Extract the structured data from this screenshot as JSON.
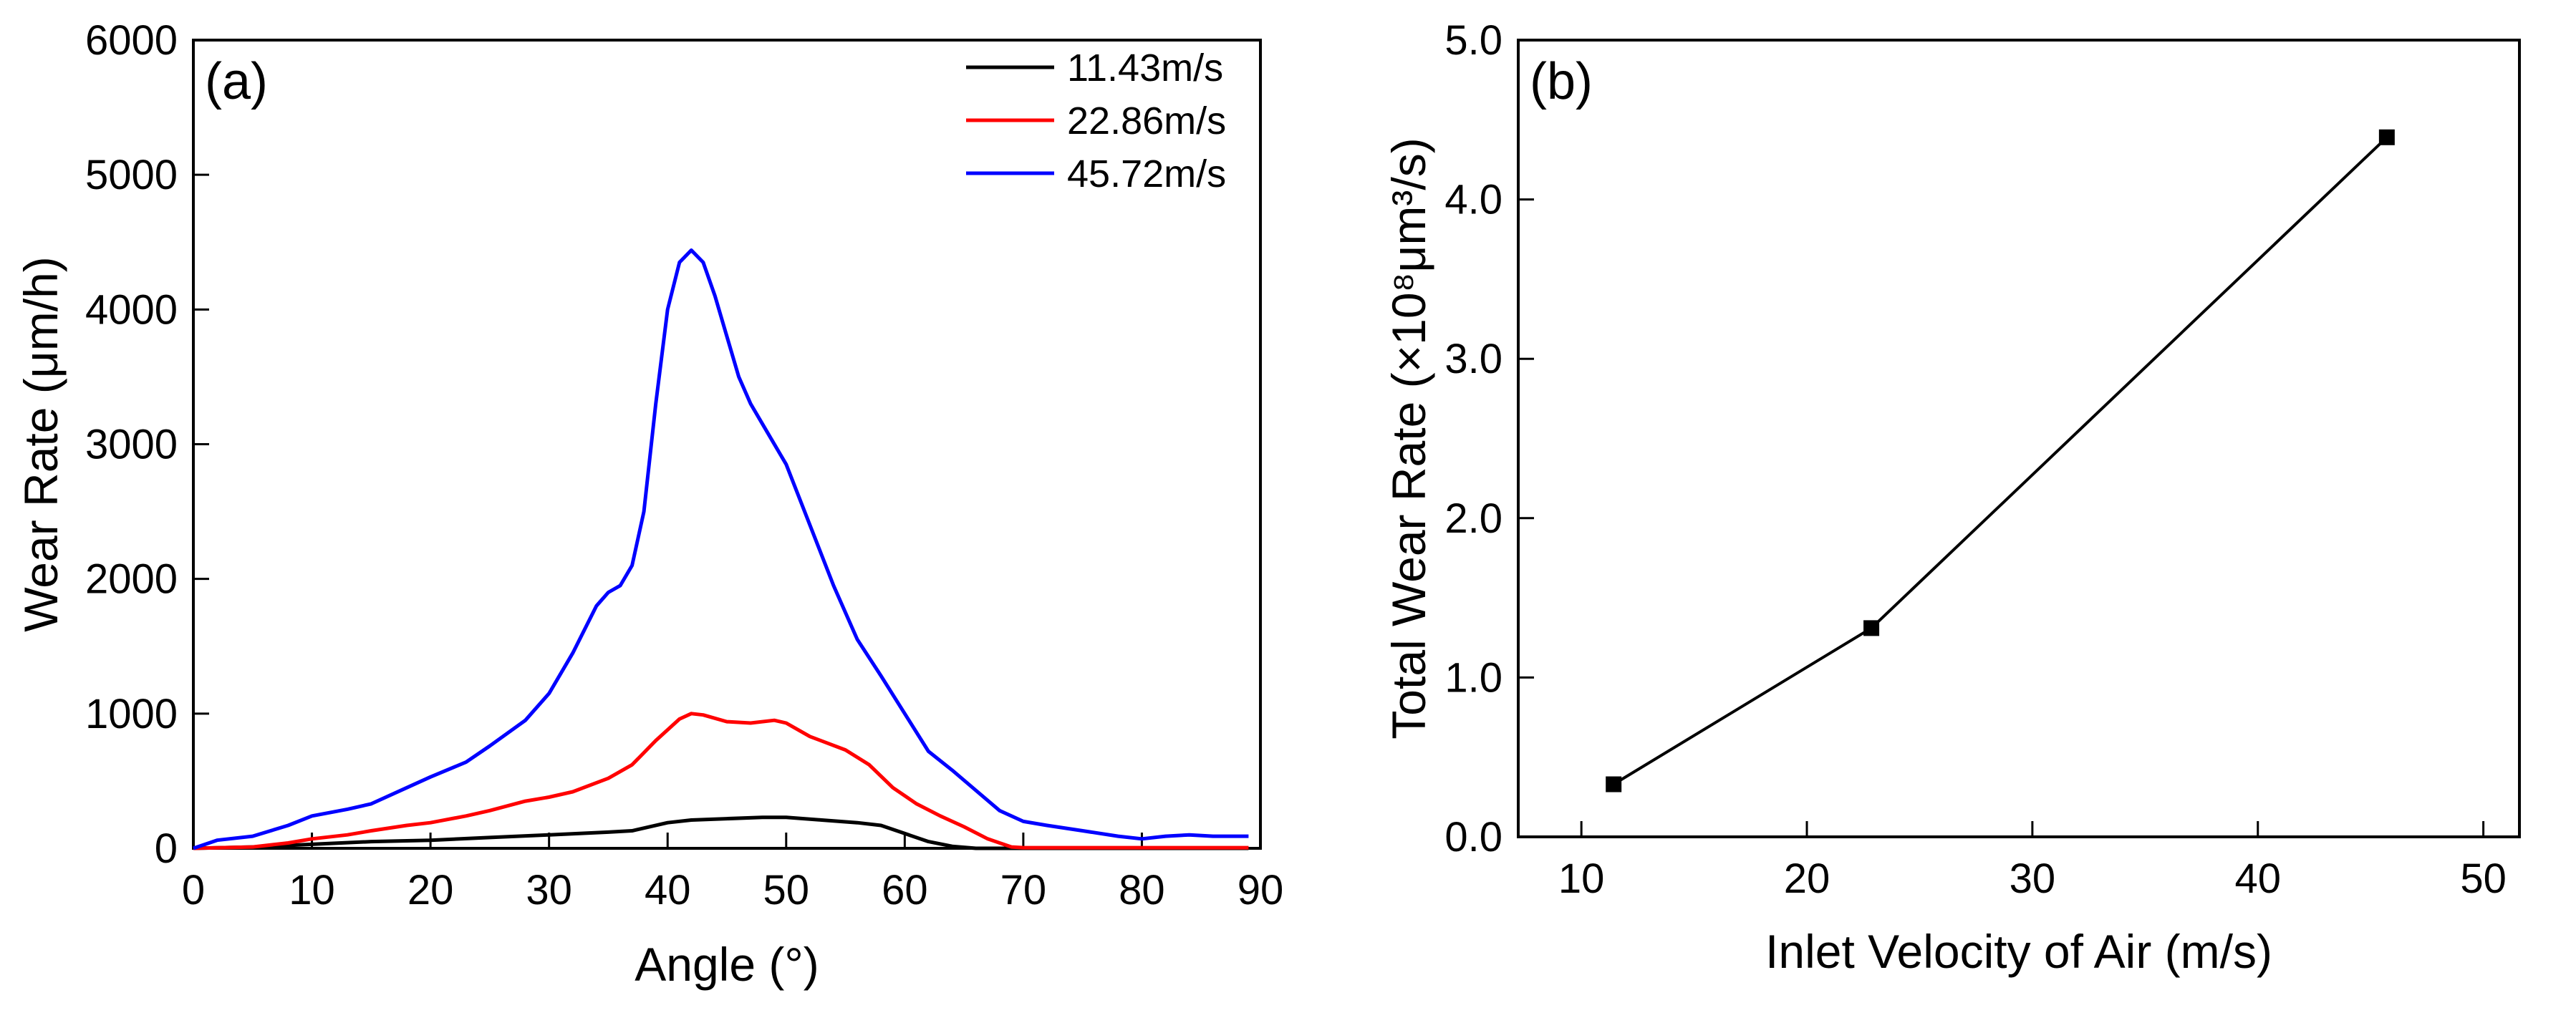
{
  "chart_data": [
    {
      "type": "line",
      "panel_label": "(a)",
      "xlabel": "Angle (°)",
      "ylabel": "Wear Rate (μm/h)",
      "xlim": [
        0,
        90
      ],
      "ylim": [
        0,
        6000
      ],
      "xticks": [
        0,
        10,
        20,
        30,
        40,
        50,
        60,
        70,
        80,
        90
      ],
      "yticks": [
        0,
        1000,
        2000,
        3000,
        4000,
        5000,
        6000
      ],
      "grid": false,
      "legend_position": "top-right",
      "series": [
        {
          "name": "11.43m/s",
          "color": "#000000",
          "x": [
            0,
            5,
            10,
            15,
            20,
            25,
            30,
            35,
            37,
            40,
            42,
            45,
            48,
            50,
            53,
            56,
            58,
            60,
            62,
            64,
            66,
            70,
            80,
            89
          ],
          "y": [
            0,
            10,
            30,
            50,
            60,
            80,
            100,
            120,
            130,
            190,
            210,
            220,
            230,
            230,
            210,
            190,
            170,
            110,
            50,
            15,
            0,
            0,
            0,
            0
          ]
        },
        {
          "name": "22.86m/s",
          "color": "#ff0000",
          "x": [
            0,
            5,
            8,
            10,
            13,
            15,
            18,
            20,
            23,
            25,
            28,
            30,
            32,
            35,
            37,
            39,
            41,
            42,
            43,
            45,
            47,
            49,
            50,
            52,
            55,
            57,
            59,
            61,
            63,
            65,
            67,
            69,
            70,
            80,
            89
          ],
          "y": [
            0,
            10,
            40,
            70,
            100,
            130,
            170,
            190,
            240,
            280,
            350,
            380,
            420,
            520,
            620,
            800,
            960,
            1000,
            990,
            940,
            930,
            950,
            930,
            830,
            730,
            620,
            450,
            330,
            240,
            160,
            70,
            10,
            5,
            5,
            5
          ]
        },
        {
          "name": "45.72m/s",
          "color": "#0000ff",
          "x": [
            0,
            2,
            5,
            8,
            10,
            13,
            15,
            18,
            20,
            23,
            25,
            28,
            30,
            32,
            34,
            35,
            36,
            37,
            38,
            39,
            40,
            41,
            42,
            43,
            44,
            45,
            46,
            47,
            48,
            50,
            52,
            54,
            56,
            58,
            60,
            62,
            64,
            66,
            68,
            70,
            72,
            75,
            78,
            80,
            82,
            84,
            86,
            89
          ],
          "y": [
            0,
            60,
            90,
            170,
            240,
            290,
            330,
            450,
            530,
            640,
            760,
            950,
            1150,
            1450,
            1800,
            1900,
            1950,
            2100,
            2500,
            3300,
            4000,
            4350,
            4440,
            4350,
            4100,
            3800,
            3500,
            3300,
            3150,
            2850,
            2400,
            1950,
            1550,
            1280,
            1000,
            720,
            580,
            430,
            280,
            200,
            170,
            130,
            90,
            70,
            90,
            100,
            90,
            90
          ]
        }
      ]
    },
    {
      "type": "line",
      "panel_label": "(b)",
      "xlabel": "Inlet Velocity of Air (m/s)",
      "ylabel": "Total Wear Rate (×10⁸μm³/s)",
      "xlim": [
        7.2,
        51.6
      ],
      "ylim": [
        0,
        5
      ],
      "xticks": [
        10,
        20,
        30,
        40,
        50
      ],
      "yticks": [
        0,
        1,
        2,
        3,
        4,
        5
      ],
      "ytick_labels": [
        "0.0",
        "1.0",
        "2.0",
        "3.0",
        "4.0",
        "5.0"
      ],
      "grid": false,
      "series": [
        {
          "name": "Total Wear Rate",
          "color": "#000000",
          "marker": "square",
          "x": [
            11.43,
            22.86,
            45.72
          ],
          "y": [
            0.33,
            1.31,
            4.39
          ]
        }
      ]
    }
  ]
}
